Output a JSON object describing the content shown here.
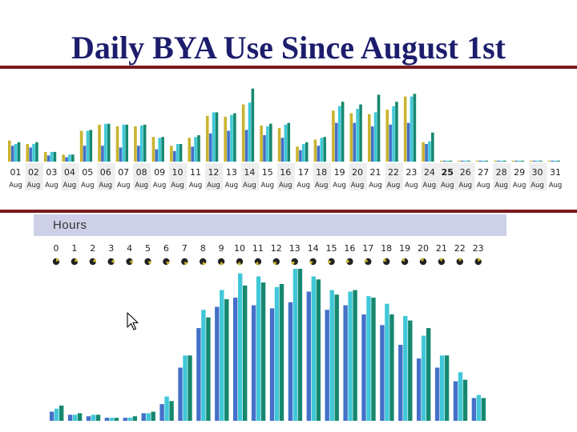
{
  "title": "Daily BYA Use Since August 1st",
  "colors": {
    "rule": "#7a1a1f",
    "gold": "#c8b430",
    "blue": "#4470c8",
    "cyan": "#40c8d8",
    "teal": "#168870",
    "dot": "#222222"
  },
  "hours_panel": {
    "label": "Hours"
  },
  "icons": [
    "cursor-icon",
    "clock-icon"
  ],
  "chart_data": [
    {
      "type": "bar",
      "title": "",
      "xlabel": "",
      "ylabel": "",
      "month_label": "Aug",
      "highlighted_category": "25",
      "categories": [
        "01",
        "02",
        "03",
        "04",
        "05",
        "06",
        "07",
        "08",
        "09",
        "10",
        "11",
        "12",
        "13",
        "14",
        "15",
        "16",
        "17",
        "18",
        "19",
        "20",
        "21",
        "22",
        "23",
        "24",
        "25",
        "26",
        "27",
        "28",
        "29",
        "30",
        "31"
      ],
      "tick_labels": [
        "01",
        "02",
        "03",
        "04",
        "05",
        "06",
        "07",
        "08",
        "09",
        "10",
        "11",
        "12",
        "13",
        "14",
        "15",
        "16",
        "17",
        "18",
        "19",
        "20",
        "21",
        "22",
        "23",
        "24",
        "25",
        "26",
        "27",
        "28",
        "29",
        "30",
        "31"
      ],
      "series": [
        {
          "values": [
            24,
            20,
            11,
            8,
            35,
            42,
            40,
            40,
            28,
            18,
            27,
            52,
            51,
            65,
            41,
            38,
            17,
            25,
            58,
            55,
            54,
            59,
            74,
            22,
            0,
            1,
            1,
            1,
            1,
            1,
            1
          ]
        },
        {
          "values": [
            18,
            16,
            7,
            5,
            18,
            18,
            16,
            18,
            14,
            12,
            17,
            32,
            35,
            36,
            30,
            27,
            13,
            18,
            44,
            44,
            40,
            42,
            44,
            20,
            0,
            0,
            0,
            0,
            0,
            0,
            0
          ]
        },
        {
          "values": [
            20,
            20,
            11,
            8,
            35,
            43,
            42,
            41,
            27,
            20,
            28,
            56,
            53,
            67,
            40,
            42,
            20,
            27,
            63,
            60,
            56,
            63,
            74,
            23,
            0,
            1,
            1,
            1,
            1,
            1,
            1
          ]
        },
        {
          "values": [
            22,
            22,
            11,
            8,
            36,
            43,
            42,
            42,
            28,
            20,
            30,
            56,
            55,
            83,
            43,
            44,
            22,
            28,
            68,
            65,
            76,
            68,
            77,
            33,
            0,
            1,
            1,
            1,
            1,
            1,
            1
          ]
        }
      ],
      "ylim": [
        0,
        100
      ]
    },
    {
      "type": "bar",
      "title": "",
      "xlabel": "",
      "ylabel": "",
      "categories": [
        "0",
        "1",
        "2",
        "3",
        "4",
        "5",
        "6",
        "7",
        "8",
        "9",
        "10",
        "11",
        "12",
        "13",
        "14",
        "15",
        "16",
        "17",
        "18",
        "19",
        "20",
        "21",
        "22",
        "23"
      ],
      "tick_labels": [
        "0",
        "1",
        "2",
        "3",
        "4",
        "5",
        "6",
        "7",
        "8",
        "9",
        "10",
        "11",
        "12",
        "13",
        "14",
        "15",
        "16",
        "17",
        "18",
        "19",
        "20",
        "21",
        "22",
        "23"
      ],
      "series": [
        {
          "values": [
            6,
            4,
            3,
            2,
            2,
            5,
            11,
            35,
            61,
            75,
            81,
            76,
            74,
            78,
            85,
            73,
            76,
            70,
            63,
            50,
            41,
            35,
            26,
            15
          ]
        },
        {
          "values": [
            8,
            4,
            4,
            2,
            2,
            5,
            16,
            43,
            73,
            86,
            97,
            95,
            88,
            100,
            95,
            86,
            85,
            82,
            77,
            69,
            56,
            43,
            32,
            17
          ]
        },
        {
          "values": [
            10,
            5,
            4,
            2,
            3,
            6,
            13,
            43,
            68,
            80,
            89,
            91,
            90,
            100,
            93,
            83,
            86,
            81,
            70,
            66,
            61,
            43,
            27,
            15
          ]
        }
      ],
      "ylim": [
        0,
        100
      ]
    }
  ]
}
